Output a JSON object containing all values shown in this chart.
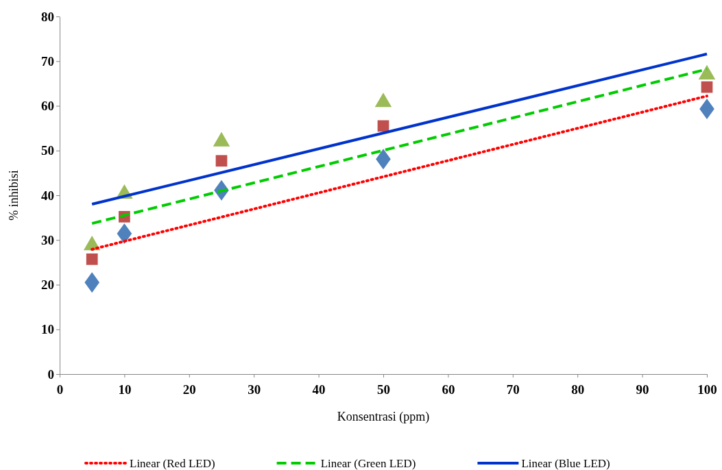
{
  "chart_data": {
    "type": "scatter",
    "xlabel": "Konsentrasi (ppm)",
    "ylabel": "% inhibisi",
    "xlim": [
      0,
      100
    ],
    "ylim": [
      0,
      80
    ],
    "xticks": [
      0,
      10,
      20,
      30,
      40,
      50,
      60,
      70,
      80,
      90,
      100
    ],
    "yticks": [
      0,
      10,
      20,
      30,
      40,
      50,
      60,
      70,
      80
    ],
    "grid": false,
    "legend": "bottom",
    "series": [
      {
        "color": "#4f81bd",
        "marker": "diamond",
        "x": [
          5,
          10,
          25,
          50,
          100
        ],
        "values": [
          20.5,
          31.4,
          41.1,
          48.1,
          59.3
        ]
      },
      {
        "color": "#c0504d",
        "marker": "square",
        "x": [
          5,
          10,
          25,
          50,
          100
        ],
        "values": [
          25.7,
          35.2,
          47.7,
          55.5,
          64.2
        ]
      },
      {
        "color": "#9bbb59",
        "marker": "triangle",
        "x": [
          5,
          10,
          25,
          50,
          100
        ],
        "values": [
          28.8,
          40.3,
          52,
          60.8,
          67
        ]
      },
      {
        "type": "line",
        "name": "Linear (Red LED)",
        "color": "#ff0000",
        "line_style": "dotted",
        "marker": "none",
        "x": [
          5,
          100
        ],
        "values": [
          27.9,
          62.2
        ]
      },
      {
        "type": "line",
        "name": "Linear (Green LED)",
        "color": "#00cc00",
        "line_style": "dashed",
        "marker": "none",
        "x": [
          5,
          100
        ],
        "values": [
          33.7,
          68.2
        ]
      },
      {
        "type": "line",
        "name": "Linear (Blue LED)",
        "color": "#0033cc",
        "line_style": "solid",
        "marker": "none",
        "x": [
          5,
          100
        ],
        "values": [
          38.0,
          71.6
        ]
      }
    ]
  }
}
